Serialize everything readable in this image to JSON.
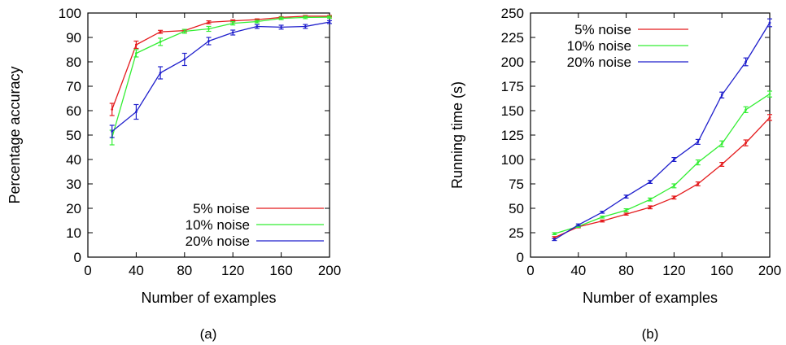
{
  "chart_data": [
    {
      "type": "line",
      "caption": "(a)",
      "xlabel": "Number of examples",
      "ylabel": "Percentage accuracy",
      "xlim": [
        0,
        200
      ],
      "ylim": [
        0,
        100
      ],
      "xticks": [
        0,
        40,
        80,
        120,
        160,
        200
      ],
      "yticks": [
        0,
        10,
        20,
        30,
        40,
        50,
        60,
        70,
        80,
        90,
        100
      ],
      "legend_position": "bottom-right",
      "grid": false,
      "x": [
        20,
        40,
        60,
        80,
        100,
        120,
        140,
        160,
        180,
        200
      ],
      "series": [
        {
          "name": "5% noise",
          "color": "#e41a1c",
          "values": [
            60.5,
            87,
            92.3,
            92.8,
            96.2,
            96.8,
            97.3,
            98.2,
            98.7,
            98.7
          ],
          "errors": [
            2.5,
            1.5,
            0.6,
            0.5,
            0.6,
            0.4,
            0.3,
            0.3,
            0.3,
            0.3
          ]
        },
        {
          "name": "10% noise",
          "color": "#33ee33",
          "values": [
            49,
            83.5,
            88.2,
            92.5,
            93.5,
            95.8,
            96.5,
            97.8,
            98.2,
            98.3
          ],
          "errors": [
            3.0,
            1.5,
            1.5,
            0.8,
            1.0,
            0.7,
            0.5,
            0.5,
            0.5,
            0.4
          ]
        },
        {
          "name": "20% noise",
          "color": "#1f1fcc",
          "values": [
            51.5,
            59.5,
            75.5,
            81,
            88.5,
            92,
            94.5,
            94.2,
            94.5,
            96.3
          ],
          "errors": [
            2.5,
            3.0,
            2.5,
            2.5,
            1.5,
            1.0,
            0.8,
            0.8,
            0.8,
            0.6
          ]
        }
      ]
    },
    {
      "type": "line",
      "caption": "(b)",
      "xlabel": "Number of examples",
      "ylabel": "Running time (s)",
      "xlim": [
        0,
        200
      ],
      "ylim": [
        0,
        250
      ],
      "xticks": [
        0,
        40,
        80,
        120,
        160,
        200
      ],
      "yticks": [
        0,
        25,
        50,
        75,
        100,
        125,
        150,
        175,
        200,
        225,
        250
      ],
      "legend_position": "top-left",
      "grid": false,
      "x": [
        20,
        40,
        60,
        80,
        100,
        120,
        140,
        160,
        180,
        200
      ],
      "series": [
        {
          "name": "5% noise",
          "color": "#e41a1c",
          "values": [
            20,
            31,
            37,
            44,
            51,
            61,
            75,
            95,
            117,
            143
          ],
          "errors": [
            1,
            1,
            1,
            1,
            1.5,
            1.5,
            2,
            2,
            3,
            3
          ]
        },
        {
          "name": "10% noise",
          "color": "#33ee33",
          "values": [
            24,
            31.5,
            41,
            48,
            59,
            73,
            97,
            116,
            151,
            167
          ],
          "errors": [
            1,
            1,
            1,
            1.5,
            1.5,
            2,
            2.5,
            3,
            3,
            3
          ]
        },
        {
          "name": "20% noise",
          "color": "#1f1fcc",
          "values": [
            18,
            33,
            46,
            62,
            77,
            100,
            118,
            166,
            200,
            240
          ],
          "errors": [
            1,
            1,
            1,
            1.5,
            1.5,
            2,
            2.5,
            3,
            4,
            4
          ]
        }
      ]
    }
  ]
}
